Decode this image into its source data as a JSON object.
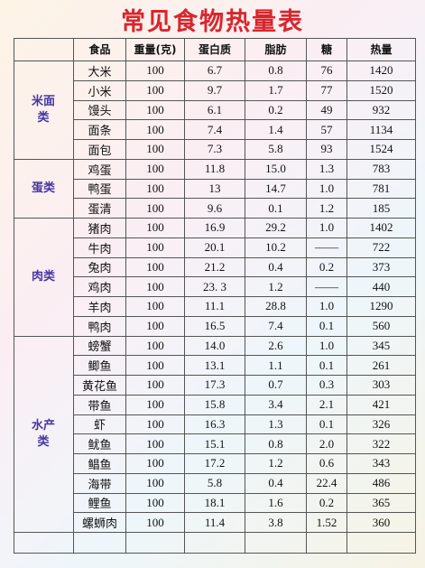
{
  "title": "常见食物热量表",
  "header": [
    "食品",
    "重量(克)",
    "蛋白质",
    "脂肪",
    "糖",
    "热量"
  ],
  "groups": [
    {
      "label": "米面类",
      "rows": [
        [
          "大米",
          "100",
          "6.7",
          "0.8",
          "76",
          "1420"
        ],
        [
          "小米",
          "100",
          "9.7",
          "1.7",
          "77",
          "1520"
        ],
        [
          "馒头",
          "100",
          "6.1",
          "0.2",
          "49",
          "932"
        ],
        [
          "面条",
          "100",
          "7.4",
          "1.4",
          "57",
          "1134"
        ],
        [
          "面包",
          "100",
          "7.3",
          "5.8",
          "93",
          "1524"
        ]
      ]
    },
    {
      "label": "蛋类",
      "rows": [
        [
          "鸡蛋",
          "100",
          "11.8",
          "15.0",
          "1.3",
          "783"
        ],
        [
          "鸭蛋",
          "100",
          "13",
          "14.7",
          "1.0",
          "781"
        ],
        [
          "蛋清",
          "100",
          "9.6",
          "0.1",
          "1.2",
          "185"
        ]
      ]
    },
    {
      "label": "肉类",
      "rows": [
        [
          "猪肉",
          "100",
          "16.9",
          "29.2",
          "1.0",
          "1402"
        ],
        [
          "牛肉",
          "100",
          "20.1",
          "10.2",
          "——",
          "722"
        ],
        [
          "兔肉",
          "100",
          "21.2",
          "0.4",
          "0.2",
          "373"
        ],
        [
          "鸡肉",
          "100",
          "23. 3",
          "1.2",
          "——",
          "440"
        ],
        [
          "羊肉",
          "100",
          "11.1",
          "28.8",
          "1.0",
          "1290"
        ],
        [
          "鸭肉",
          "100",
          "16.5",
          "7.4",
          "0.1",
          "560"
        ]
      ]
    },
    {
      "label": "水产类",
      "rows": [
        [
          "螃蟹",
          "100",
          "14.0",
          "2.6",
          "1.0",
          "345"
        ],
        [
          "鲫鱼",
          "100",
          "13.1",
          "1.1",
          "0.1",
          "261"
        ],
        [
          "黄花鱼",
          "100",
          "17.3",
          "0.7",
          "0.3",
          "303"
        ],
        [
          "带鱼",
          "100",
          "15.8",
          "3.4",
          "2.1",
          "421"
        ],
        [
          "虾",
          "100",
          "16.3",
          "1.3",
          "0.1",
          "326"
        ],
        [
          "鱿鱼",
          "100",
          "15.1",
          "0.8",
          "2.0",
          "322"
        ],
        [
          "鲳鱼",
          "100",
          "17.2",
          "1.2",
          "0.6",
          "343"
        ],
        [
          "海带",
          "100",
          "5.8",
          "0.4",
          "22.4",
          "486"
        ],
        [
          "鲤鱼",
          "100",
          "18.1",
          "1.6",
          "0.2",
          "365"
        ],
        [
          "螺蛳肉",
          "100",
          "11.4",
          "3.8",
          "1.52",
          "360"
        ]
      ]
    }
  ]
}
